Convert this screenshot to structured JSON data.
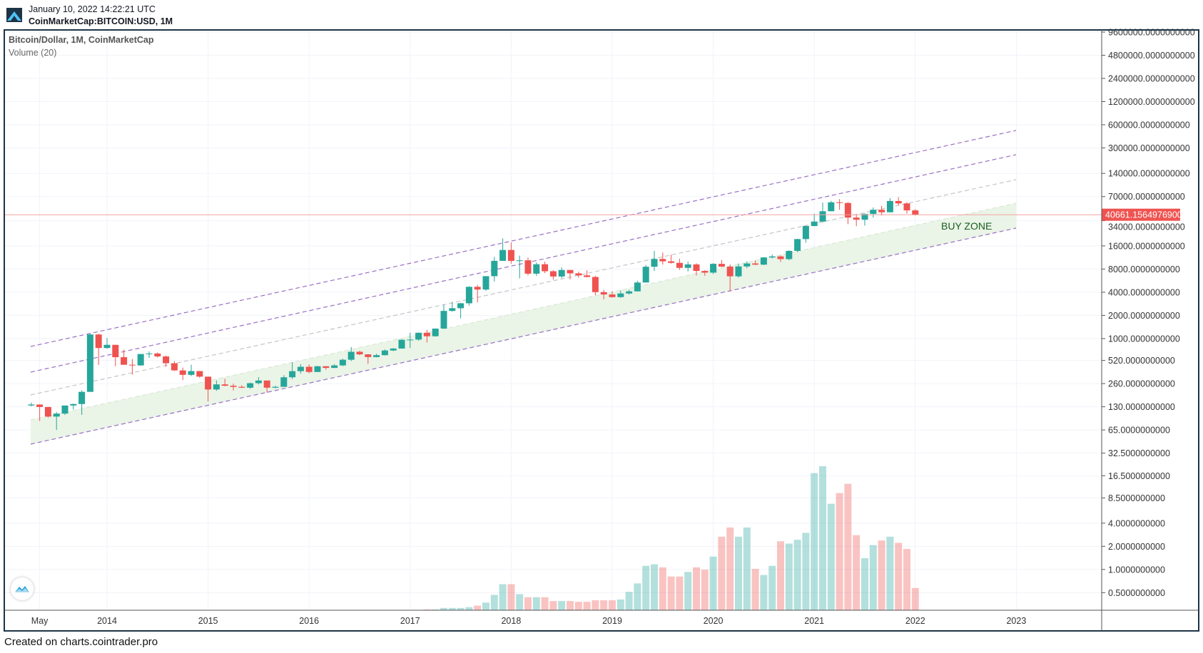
{
  "header": {
    "timestamp": "January 10, 2022 14:22:21 UTC",
    "symbol": "CoinMarketCap:BITCOIN:USD, 1M"
  },
  "legend": {
    "series_title": "Bitcoin/Dollar, 1M, CoinMarketCap",
    "volume_title": "Volume (20)"
  },
  "footer": {
    "text": "Created on charts.cointrader.pro"
  },
  "colors": {
    "up": "#26a69a",
    "down": "#ef5350",
    "channel": "#9a6fc4",
    "midline": "#bdbdbd",
    "buy_zone": "#e8f3e4",
    "frame": "#1d3447"
  },
  "icons": {
    "app_logo": "mountain-logo-icon",
    "watermark": "cointrader-logo-icon"
  },
  "chart_data": {
    "type": "candlestick",
    "title": "Bitcoin/Dollar, 1M, CoinMarketCap",
    "y_scale": "log",
    "grid": true,
    "start_month": "2013-04",
    "interval": "1M",
    "last_price": "40661.1564976900",
    "annotation": "BUY ZONE",
    "price_ticks": [
      "9600000.0000000000",
      "4800000.0000000000",
      "2400000.0000000000",
      "1200000.0000000000",
      "600000.0000000000",
      "300000.0000000000",
      "140000.0000000000",
      "70000.0000000000",
      "34000.0000000000",
      "16000.0000000000",
      "8000.0000000000",
      "4000.0000000000",
      "2000.0000000000",
      "1000.0000000000",
      "520.0000000000",
      "260.0000000000",
      "130.0000000000",
      "65.0000000000",
      "32.5000000000",
      "16.5000000000",
      "8.5000000000",
      "4.0000000000",
      "2.0000000000",
      "1.0000000000",
      "0.5000000000"
    ],
    "time_ticks": [
      {
        "label": "May",
        "date": "2013-05"
      },
      {
        "label": "2014",
        "date": "2014-01"
      },
      {
        "label": "2015",
        "date": "2015-01"
      },
      {
        "label": "2016",
        "date": "2016-01"
      },
      {
        "label": "2017",
        "date": "2017-01"
      },
      {
        "label": "2018",
        "date": "2018-01"
      },
      {
        "label": "2019",
        "date": "2019-01"
      },
      {
        "label": "2020",
        "date": "2020-01"
      },
      {
        "label": "2021",
        "date": "2021-01"
      },
      {
        "label": "2022",
        "date": "2022-01"
      },
      {
        "label": "2023",
        "date": "2023-01"
      }
    ],
    "ohlc": [
      [
        135,
        147,
        132,
        139
      ],
      [
        139,
        140,
        85,
        129
      ],
      [
        129,
        130,
        94,
        97
      ],
      [
        97,
        111,
        65,
        106
      ],
      [
        106,
        135,
        102,
        135
      ],
      [
        135,
        143,
        120,
        141
      ],
      [
        141,
        213,
        102,
        203
      ],
      [
        203,
        1156,
        203,
        1130
      ],
      [
        1130,
        1156,
        455,
        754
      ],
      [
        754,
        1017,
        740,
        829
      ],
      [
        829,
        829,
        438,
        573
      ],
      [
        573,
        718,
        457,
        457
      ],
      [
        457,
        541,
        340,
        448
      ],
      [
        448,
        630,
        443,
        630
      ],
      [
        630,
        680,
        560,
        640
      ],
      [
        640,
        660,
        567,
        586
      ],
      [
        586,
        600,
        430,
        478
      ],
      [
        478,
        510,
        380,
        386
      ],
      [
        386,
        420,
        289,
        338
      ],
      [
        338,
        457,
        325,
        378
      ],
      [
        378,
        380,
        310,
        320
      ],
      [
        320,
        320,
        152,
        218
      ],
      [
        218,
        285,
        210,
        254
      ],
      [
        254,
        300,
        240,
        244
      ],
      [
        244,
        260,
        212,
        236
      ],
      [
        236,
        247,
        228,
        230
      ],
      [
        230,
        268,
        222,
        263
      ],
      [
        263,
        315,
        253,
        285
      ],
      [
        285,
        285,
        198,
        230
      ],
      [
        230,
        243,
        226,
        236
      ],
      [
        236,
        334,
        236,
        314
      ],
      [
        314,
        495,
        298,
        377
      ],
      [
        377,
        465,
        350,
        430
      ],
      [
        430,
        462,
        354,
        368
      ],
      [
        368,
        441,
        368,
        437
      ],
      [
        437,
        439,
        394,
        416
      ],
      [
        416,
        466,
        413,
        448
      ],
      [
        448,
        548,
        438,
        531
      ],
      [
        531,
        777,
        511,
        673
      ],
      [
        673,
        695,
        610,
        624
      ],
      [
        624,
        626,
        470,
        575
      ],
      [
        575,
        634,
        571,
        609
      ],
      [
        609,
        723,
        603,
        700
      ],
      [
        700,
        753,
        689,
        742
      ],
      [
        742,
        979,
        742,
        964
      ],
      [
        964,
        1191,
        755,
        970
      ],
      [
        970,
        1200,
        939,
        1190
      ],
      [
        1190,
        1294,
        891,
        1072
      ],
      [
        1072,
        1350,
        1062,
        1348
      ],
      [
        1348,
        2763,
        1348,
        2287
      ],
      [
        2287,
        2999,
        2230,
        2481
      ],
      [
        2481,
        2916,
        1837,
        2875
      ],
      [
        2875,
        4770,
        2690,
        4703
      ],
      [
        4703,
        4975,
        2952,
        4338
      ],
      [
        4338,
        6470,
        4167,
        6468
      ],
      [
        6468,
        11517,
        5519,
        10233
      ],
      [
        10233,
        20089,
        10233,
        14157
      ],
      [
        14157,
        17712,
        9402,
        10221
      ],
      [
        10221,
        11958,
        6048,
        10397
      ],
      [
        10397,
        11274,
        6605,
        6973
      ],
      [
        6973,
        9745,
        6527,
        9240
      ],
      [
        9240,
        9964,
        7079,
        7495
      ],
      [
        7495,
        7754,
        5826,
        6404
      ],
      [
        6404,
        8424,
        6118,
        7780
      ],
      [
        7780,
        7770,
        5880,
        7037
      ],
      [
        7037,
        7388,
        6200,
        6625
      ],
      [
        6625,
        7680,
        6236,
        6318
      ],
      [
        6318,
        6553,
        3652,
        4017
      ],
      [
        4017,
        4309,
        3236,
        3742
      ],
      [
        3742,
        4109,
        3400,
        3457
      ],
      [
        3457,
        4210,
        3391,
        3854
      ],
      [
        3854,
        4296,
        3734,
        4105
      ],
      [
        4105,
        5642,
        4096,
        5350
      ],
      [
        5350,
        9074,
        5350,
        8574
      ],
      [
        8574,
        13796,
        7564,
        10817
      ],
      [
        10817,
        13129,
        9163,
        10085
      ],
      [
        10085,
        12273,
        9421,
        9630
      ],
      [
        9630,
        10898,
        7830,
        8293
      ],
      [
        8293,
        10021,
        7446,
        9199
      ],
      [
        9199,
        9505,
        6617,
        7569
      ],
      [
        7569,
        7743,
        6540,
        7193
      ],
      [
        7193,
        9553,
        6914,
        9350
      ],
      [
        9350,
        10500,
        8492,
        8599
      ],
      [
        8599,
        9167,
        4106,
        6438
      ],
      [
        6438,
        9440,
        6202,
        8658
      ],
      [
        8658,
        10067,
        8233,
        9461
      ],
      [
        9461,
        10348,
        8975,
        9137
      ],
      [
        9137,
        11434,
        8977,
        11323
      ],
      [
        11323,
        12359,
        10988,
        11680
      ],
      [
        11680,
        12067,
        9916,
        10784
      ],
      [
        10784,
        14029,
        10416,
        13781
      ],
      [
        13781,
        19749,
        13243,
        19625
      ],
      [
        19625,
        29244,
        17619,
        29001
      ],
      [
        29001,
        41946,
        28722,
        33114
      ],
      [
        33114,
        58330,
        32384,
        45137
      ],
      [
        45137,
        61683,
        45137,
        58918
      ],
      [
        58918,
        64863,
        47159,
        57750
      ],
      [
        57750,
        59592,
        30681,
        37332
      ],
      [
        37332,
        41295,
        28893,
        35040
      ],
      [
        35040,
        42236,
        29360,
        41626
      ],
      [
        41626,
        50482,
        37458,
        47166
      ],
      [
        47166,
        52920,
        39787,
        43790
      ],
      [
        43790,
        66930,
        43321,
        61318
      ],
      [
        61318,
        68789,
        53569,
        57005
      ],
      [
        57005,
        59041,
        42000,
        46306
      ],
      [
        46306,
        47990,
        39650,
        40661
      ]
    ],
    "volume": [
      0,
      0,
      0,
      0,
      0,
      0,
      0,
      0,
      0,
      0,
      0,
      0,
      0,
      0,
      0,
      0,
      0,
      0,
      0,
      0,
      0,
      0,
      0,
      0,
      0,
      0,
      0,
      0,
      0,
      0,
      0,
      0,
      0,
      0,
      0,
      0,
      0,
      0,
      0,
      0,
      0,
      0,
      0,
      0,
      0,
      0,
      0,
      10,
      10,
      30,
      30,
      30,
      40,
      60,
      100,
      200,
      340,
      340,
      210,
      170,
      170,
      170,
      120,
      120,
      120,
      110,
      110,
      130,
      130,
      130,
      140,
      240,
      350,
      580,
      600,
      560,
      440,
      440,
      500,
      560,
      530,
      700,
      960,
      1080,
      960,
      1080,
      540,
      460,
      580,
      900,
      870,
      920,
      1010,
      1790,
      1880,
      1390,
      1530,
      1650,
      980,
      680,
      850,
      910,
      960,
      880,
      800,
      290
    ]
  }
}
